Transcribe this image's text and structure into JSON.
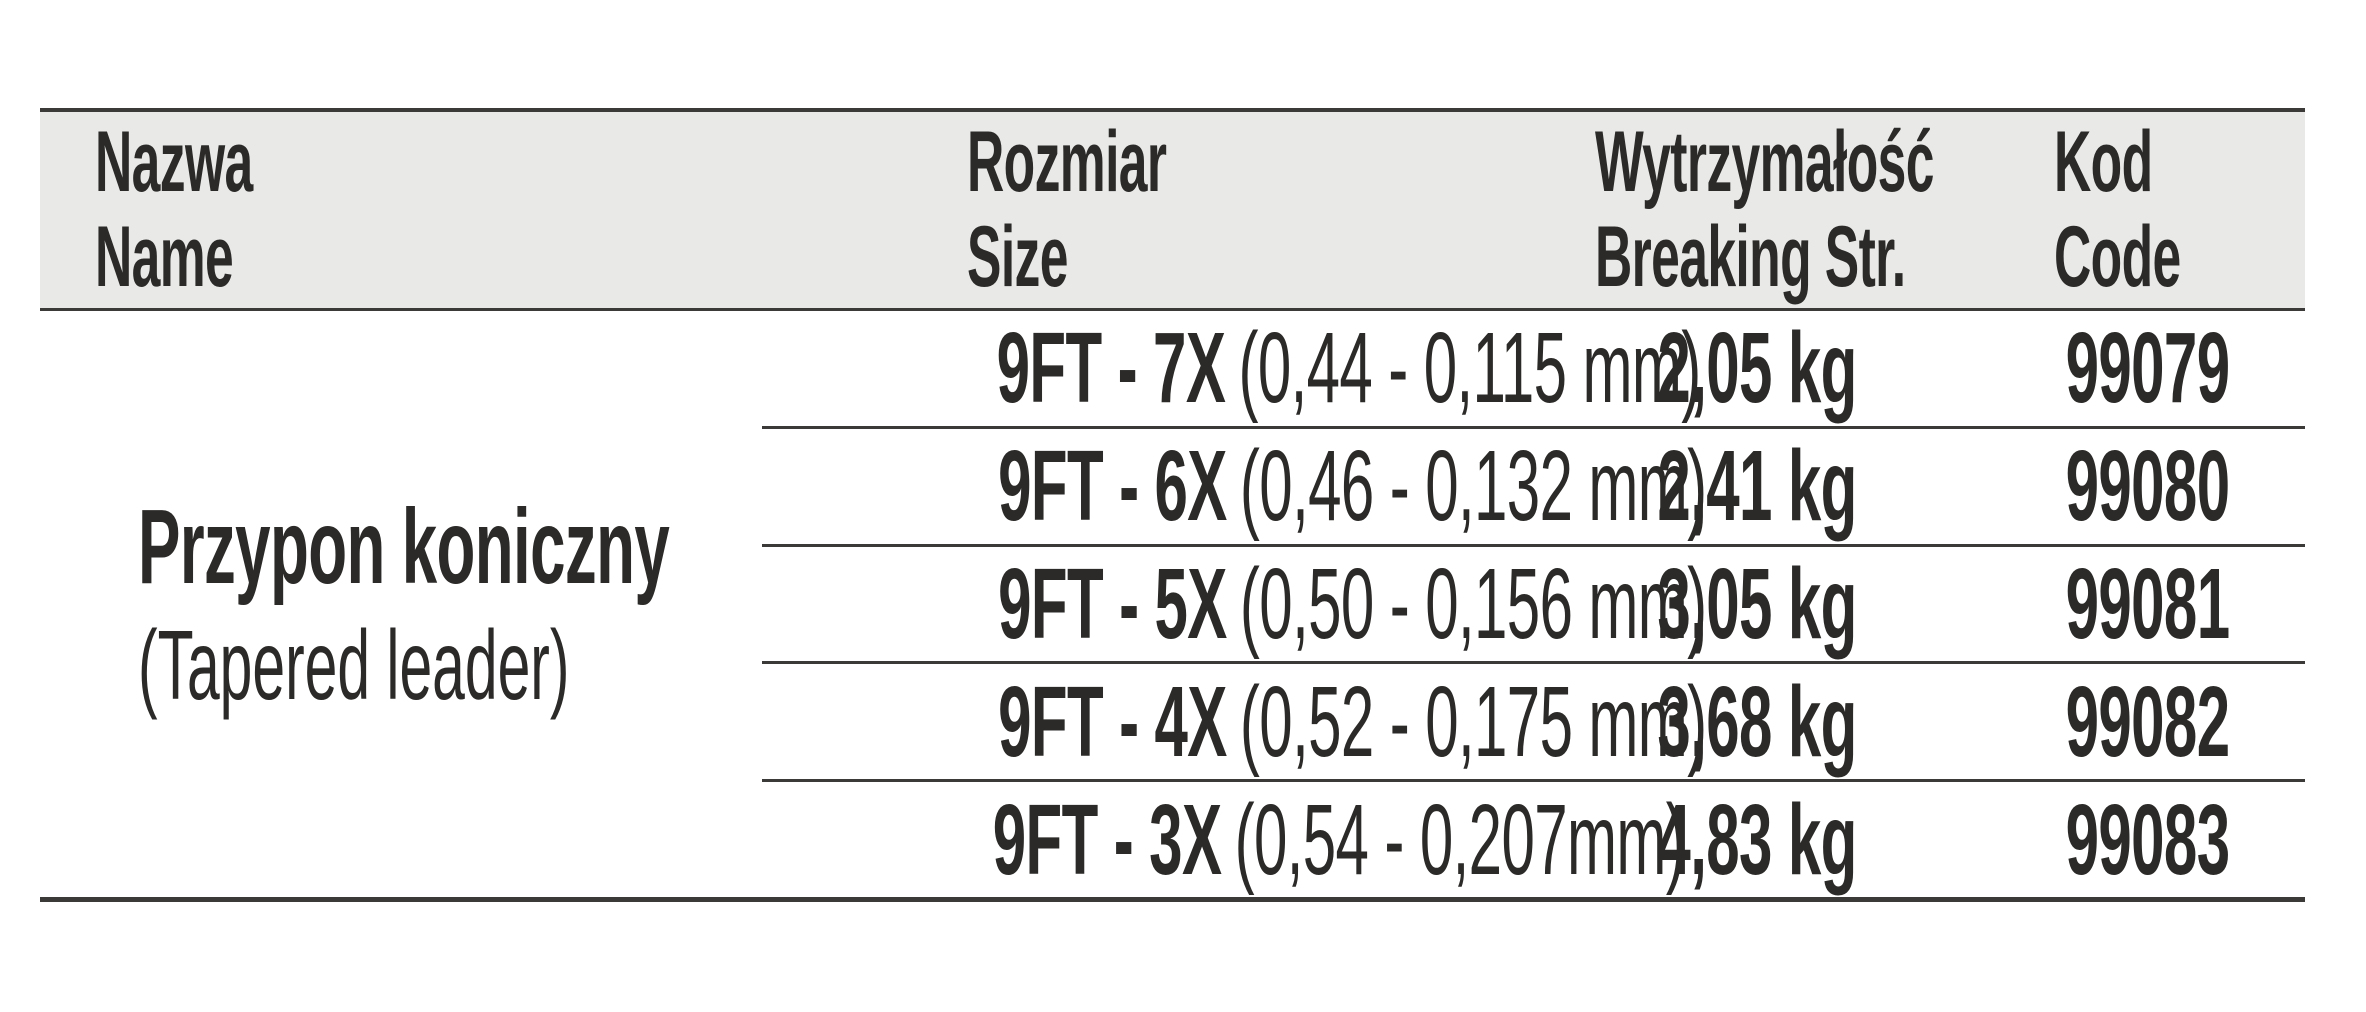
{
  "meta": {
    "background_color": "#ffffff",
    "header_bg_color": "#e9eae8",
    "line_color": "#3b3a38",
    "text_color": "#2b2a28"
  },
  "table": {
    "columns": [
      {
        "pl": "Nazwa",
        "en": "Name"
      },
      {
        "pl": "Rozmiar",
        "en": "Size"
      },
      {
        "pl": "Wytrzymałość",
        "en": "Breaking Str."
      },
      {
        "pl": "Kod",
        "en": "Code"
      }
    ],
    "product": {
      "name_pl": "Przypon koniczny",
      "name_en": "(Tapered leader)"
    },
    "rows": [
      {
        "size": "9FT - 7X",
        "dimensions": "(0,44 - 0,115 mm)",
        "strength": "2,05 kg",
        "code": "99079"
      },
      {
        "size": "9FT - 6X",
        "dimensions": "(0,46 - 0,132 mm)",
        "strength": "2,41 kg",
        "code": "99080"
      },
      {
        "size": "9FT - 5X",
        "dimensions": "(0,50 - 0,156 mm)",
        "strength": "3,05 kg",
        "code": "99081"
      },
      {
        "size": "9FT - 4X",
        "dimensions": "(0,52 - 0,175 mm)",
        "strength": "3,68 kg",
        "code": "99082"
      },
      {
        "size": "9FT - 3X",
        "dimensions": "(0,54 - 0,207mm)",
        "strength": "4,83 kg",
        "code": "99083"
      }
    ]
  }
}
